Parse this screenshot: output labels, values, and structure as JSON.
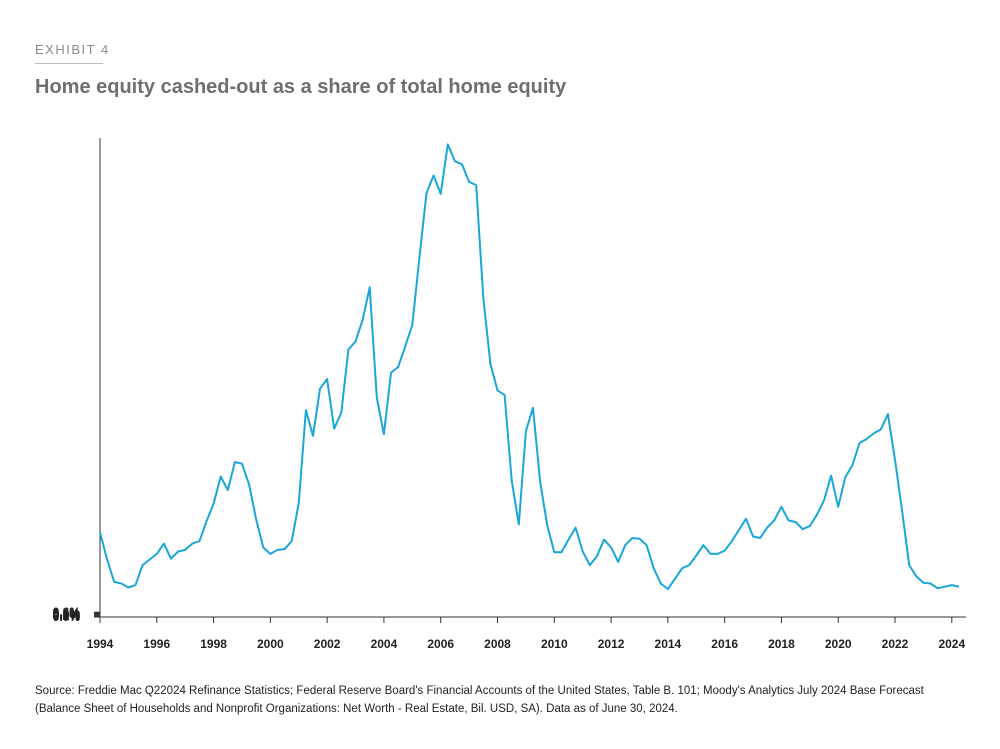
{
  "header": {
    "exhibit_label": "EXHIBIT 4",
    "title": "Home equity cashed-out as a share of total home equity"
  },
  "source_note": "Source: Freddie Mac Q22024 Refinance Statistics; Federal Reserve Board's Financial Accounts of the United States, Table B. 101; Moody's Analytics July 2024 Base Forecast (Balance Sheet of Households and Nonprofit Organizations: Net Worth - Real Estate, Bil. USD, SA). Data as of June 30, 2024.",
  "colors": {
    "line": "#1aa6d9",
    "axis": "#333333"
  },
  "chart_data": {
    "type": "line",
    "title": "Home equity cashed-out as a share of total home equity",
    "xlabel": "",
    "ylabel": "",
    "xlim": [
      1994,
      2024.5
    ],
    "ylim": [
      0,
      0.6
    ],
    "x_ticks": [
      "1994",
      "1996",
      "1998",
      "2000",
      "2002",
      "2004",
      "2006",
      "2008",
      "2010",
      "2012",
      "2014",
      "2016",
      "2018",
      "2020",
      "2022",
      "2024"
    ],
    "y_ticks": [
      "0.0%",
      "0.1%",
      "0.2%",
      "0.3%",
      "0.4%",
      "0.5%",
      "0.6%"
    ],
    "grid": false,
    "series": [
      {
        "x": [
          1994,
          1994.25,
          1994.5,
          1994.75,
          1995,
          1995.25,
          1995.5,
          1995.75,
          1996,
          1996.25,
          1996.5,
          1996.75,
          1997,
          1997.25,
          1997.5,
          1997.75,
          1998,
          1998.25,
          1998.5,
          1998.75,
          1999,
          1999.25,
          1999.5,
          1999.75,
          2000,
          2000.25,
          2000.5,
          2000.75,
          2001,
          2001.25,
          2001.5,
          2001.75,
          2002,
          2002.25,
          2002.5,
          2002.75,
          2003,
          2003.25,
          2003.5,
          2003.75,
          2004,
          2004.25,
          2004.5,
          2004.75,
          2005,
          2005.25,
          2005.5,
          2005.75,
          2006,
          2006.25,
          2006.5,
          2006.75,
          2007,
          2007.25,
          2007.5,
          2007.75,
          2008,
          2008.25,
          2008.5,
          2008.75,
          2009,
          2009.25,
          2009.5,
          2009.75,
          2010,
          2010.25,
          2010.5,
          2010.75,
          2011,
          2011.25,
          2011.5,
          2011.75,
          2012,
          2012.25,
          2012.5,
          2012.75,
          2013,
          2013.25,
          2013.5,
          2013.75,
          2014,
          2014.25,
          2014.5,
          2014.75,
          2015,
          2015.25,
          2015.5,
          2015.75,
          2016,
          2016.25,
          2016.5,
          2016.75,
          2017,
          2017.25,
          2017.5,
          2017.75,
          2018,
          2018.25,
          2018.5,
          2018.75,
          2019,
          2019.25,
          2019.5,
          2019.75,
          2020,
          2020.25,
          2020.5,
          2020.75,
          2021,
          2021.25,
          2021.5,
          2021.75,
          2022,
          2022.25,
          2022.5,
          2022.75,
          2023,
          2023.25,
          2023.5,
          2023.75,
          2024,
          2024.25
        ],
        "values": [
          0.106,
          0.072,
          0.044,
          0.042,
          0.037,
          0.04,
          0.065,
          0.072,
          0.079,
          0.092,
          0.073,
          0.082,
          0.084,
          0.092,
          0.095,
          0.12,
          0.142,
          0.176,
          0.159,
          0.194,
          0.192,
          0.166,
          0.122,
          0.087,
          0.079,
          0.084,
          0.085,
          0.095,
          0.143,
          0.259,
          0.227,
          0.286,
          0.298,
          0.236,
          0.256,
          0.335,
          0.345,
          0.372,
          0.413,
          0.275,
          0.229,
          0.306,
          0.313,
          0.339,
          0.366,
          0.45,
          0.531,
          0.553,
          0.53,
          0.592,
          0.571,
          0.567,
          0.545,
          0.541,
          0.4,
          0.317,
          0.284,
          0.278,
          0.171,
          0.116,
          0.233,
          0.262,
          0.17,
          0.115,
          0.081,
          0.081,
          0.097,
          0.112,
          0.082,
          0.065,
          0.076,
          0.097,
          0.087,
          0.069,
          0.09,
          0.099,
          0.098,
          0.09,
          0.061,
          0.042,
          0.035,
          0.048,
          0.061,
          0.065,
          0.077,
          0.09,
          0.079,
          0.079,
          0.083,
          0.095,
          0.109,
          0.123,
          0.101,
          0.099,
          0.112,
          0.121,
          0.138,
          0.121,
          0.119,
          0.11,
          0.114,
          0.128,
          0.146,
          0.177,
          0.138,
          0.175,
          0.19,
          0.218,
          0.223,
          0.23,
          0.235,
          0.254,
          0.197,
          0.133,
          0.065,
          0.051,
          0.043,
          0.042,
          0.036,
          0.038,
          0.04,
          0.038
        ]
      }
    ]
  }
}
